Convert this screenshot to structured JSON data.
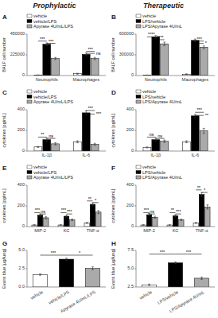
{
  "chart_data": [
    {
      "type": "bar",
      "title": "A",
      "subtitle": "Prophylactic",
      "categories": [
        "Neutrophils",
        "Macrophages"
      ],
      "series": [
        {
          "name": "vehicle",
          "color": "white",
          "values": [
            5000,
            20000
          ],
          "errors": [
            2000,
            5000
          ]
        },
        {
          "name": "vehicle/LPS",
          "color": "black",
          "values": [
            340000,
            230000
          ],
          "errors": [
            15000,
            15000
          ]
        },
        {
          "name": "Apyrase 4U/mL/LPS",
          "color": "#aaaaaa",
          "values": [
            185000,
            185000
          ],
          "errors": [
            12000,
            12000
          ]
        }
      ],
      "ylabel": "BALF cell number",
      "ylim": [
        0,
        450000
      ],
      "yticks": [
        0,
        225000,
        450000
      ],
      "legend": "top",
      "grid": false,
      "annotations": [
        {
          "text": "***",
          "y": 375000,
          "group": "Neutrophils",
          "from": "vehicle",
          "to": "vehicle/LPS"
        },
        {
          "text": "***",
          "y": 350000,
          "group": "Neutrophils",
          "from": "vehicle/LPS",
          "to": "Apyrase 4U/mL/LPS"
        },
        {
          "text": "***",
          "y": 263000,
          "group": "Macrophages",
          "from": "vehicle/LPS",
          "to": "Apyrase 4U/mL/LPS"
        },
        {
          "text": "ns",
          "y": 241000,
          "group": "Macrophages",
          "from": "vehicle/LPS",
          "to": "Apyrase 4U/mL/LPS"
        }
      ]
    },
    {
      "type": "bar",
      "title": "B",
      "subtitle": "Therapeutic",
      "categories": [
        "Neutrophils",
        "Macrophages"
      ],
      "series": [
        {
          "name": "vehicle",
          "color": "white",
          "values": [
            5000,
            20000
          ],
          "errors": [
            2000,
            5000
          ]
        },
        {
          "name": "LPS/vehicle",
          "color": "black",
          "values": [
            560000,
            510000
          ],
          "errors": [
            20000,
            20000
          ]
        },
        {
          "name": "LPS/Apyrase 4U/mL",
          "color": "#aaaaaa",
          "values": [
            460000,
            410000
          ],
          "errors": [
            25000,
            20000
          ]
        }
      ],
      "ylabel": "BALF cell number",
      "ylim": [
        0,
        600000
      ],
      "yticks": [
        0,
        300000,
        600000
      ],
      "legend": "top",
      "grid": false,
      "annotations": [
        {
          "text": "****",
          "y": 560000,
          "group": "Neutrophils",
          "from": "vehicle",
          "to": "LPS/vehicle"
        },
        {
          "text": "****",
          "y": 520000,
          "group": "Neutrophils",
          "from": "LPS/vehicle",
          "to": "LPS/Apyrase 4U/mL"
        },
        {
          "text": "***",
          "y": 500000,
          "group": "Macrophages",
          "from": "LPS/vehicle",
          "to": "LPS/Apyrase 4U/mL"
        },
        {
          "text": "*",
          "y": 465000,
          "group": "Macrophages",
          "from": "LPS/vehicle",
          "to": "LPS/Apyrase 4U/mL"
        }
      ]
    },
    {
      "type": "bar",
      "title": "C",
      "categories": [
        "IL-1β",
        "IL-6"
      ],
      "series": [
        {
          "name": "vehicle",
          "color": "white",
          "values": [
            40,
            90
          ],
          "errors": [
            5,
            10
          ]
        },
        {
          "name": "vehicle/LPS",
          "color": "black",
          "values": [
            110,
            370
          ],
          "errors": [
            15,
            20
          ]
        },
        {
          "name": "Apyrase 4U/mL/LPS",
          "color": "#aaaaaa",
          "values": [
            70,
            65
          ],
          "errors": [
            10,
            10
          ]
        }
      ],
      "ylabel": "cytokines [pg/mL]",
      "ylim": [
        0,
        400
      ],
      "yticks": [
        0,
        200,
        400
      ],
      "legend": "top",
      "grid": false,
      "annotations": [
        {
          "text": "**",
          "y": 135,
          "group": "IL-1β",
          "from": "vehicle",
          "to": "vehicle/LPS"
        },
        {
          "text": "ns",
          "y": 122,
          "group": "IL-1β",
          "from": "vehicle/LPS",
          "to": "Apyrase 4U/mL/LPS"
        },
        {
          "text": "***",
          "y": 392,
          "group": "IL-6",
          "from": "vehicle/LPS",
          "to": "Apyrase 4U/mL/LPS"
        },
        {
          "text": "***",
          "y": 358,
          "group": "IL-6",
          "from": "vehicle/LPS",
          "to": "Apyrase 4U/mL/LPS"
        }
      ]
    },
    {
      "type": "bar",
      "title": "D",
      "categories": [
        "IL-1β",
        "IL-6"
      ],
      "series": [
        {
          "name": "vehicle",
          "color": "white",
          "values": [
            35,
            90
          ],
          "errors": [
            5,
            10
          ]
        },
        {
          "name": "LPS/vehicle",
          "color": "black",
          "values": [
            110,
            340
          ],
          "errors": [
            15,
            15
          ]
        },
        {
          "name": "LPS/Apyrase 4U/mL",
          "color": "#aaaaaa",
          "values": [
            95,
            195
          ],
          "errors": [
            12,
            25
          ]
        }
      ],
      "ylabel": "cytokines [pg/mL]",
      "ylim": [
        0,
        400
      ],
      "yticks": [
        0,
        200,
        400
      ],
      "legend": "top",
      "grid": false,
      "annotations": [
        {
          "text": "ns",
          "y": 135,
          "group": "IL-1β",
          "from": "vehicle",
          "to": "LPS/vehicle"
        },
        {
          "text": "ns",
          "y": 122,
          "group": "IL-1β",
          "from": "LPS/vehicle",
          "to": "LPS/Apyrase 4U/mL"
        },
        {
          "text": "***",
          "y": 375,
          "group": "IL-6",
          "from": "LPS/vehicle",
          "to": "LPS/Apyrase 4U/mL"
        },
        {
          "text": "**",
          "y": 345,
          "group": "IL-6",
          "from": "LPS/vehicle",
          "to": "LPS/Apyrase 4U/mL"
        }
      ]
    },
    {
      "type": "bar",
      "title": "E",
      "categories": [
        "MIP-2",
        "KC",
        "TNF-α"
      ],
      "series": [
        {
          "name": "vehicle",
          "color": "white",
          "values": [
            15,
            15,
            35
          ],
          "errors": [
            3,
            3,
            5
          ]
        },
        {
          "name": "vehicle/LPS",
          "color": "black",
          "values": [
            110,
            100,
            215
          ],
          "errors": [
            12,
            10,
            15
          ]
        },
        {
          "name": "Apyrase 4U/mL/LPS",
          "color": "#aaaaaa",
          "values": [
            85,
            65,
            140
          ],
          "errors": [
            10,
            8,
            15
          ]
        }
      ],
      "ylabel": "cytokines [pg/mL]",
      "ylim": [
        0,
        400
      ],
      "yticks": [
        0,
        200,
        400
      ],
      "legend": "top",
      "grid": false,
      "annotations": [
        {
          "text": "***",
          "y": 135,
          "group": "MIP-2",
          "from": "vehicle",
          "to": "vehicle/LPS"
        },
        {
          "text": "ns",
          "y": 122,
          "group": "MIP-2",
          "from": "vehicle/LPS",
          "to": "Apyrase 4U/mL/LPS"
        },
        {
          "text": "***",
          "y": 135,
          "group": "KC",
          "from": "vehicle",
          "to": "vehicle/LPS"
        },
        {
          "text": "***",
          "y": 122,
          "group": "KC",
          "from": "vehicle/LPS",
          "to": "Apyrase 4U/mL/LPS"
        },
        {
          "text": "**",
          "y": 248,
          "group": "TNF-α",
          "from": "vehicle",
          "to": "vehicle/LPS"
        },
        {
          "text": "*",
          "y": 232,
          "group": "TNF-α",
          "from": "vehicle/LPS",
          "to": "Apyrase 4U/mL/LPS"
        }
      ]
    },
    {
      "type": "bar",
      "title": "F",
      "categories": [
        "MIP-2",
        "KC",
        "TNF-α"
      ],
      "series": [
        {
          "name": "vehicle",
          "color": "white",
          "values": [
            15,
            15,
            35
          ],
          "errors": [
            3,
            3,
            5
          ]
        },
        {
          "name": "LPS/vehicle",
          "color": "black",
          "values": [
            115,
            105,
            310
          ],
          "errors": [
            12,
            10,
            20
          ]
        },
        {
          "name": "LPS/Apyrase 4U/mL",
          "color": "#aaaaaa",
          "values": [
            90,
            65,
            190
          ],
          "errors": [
            10,
            8,
            20
          ]
        }
      ],
      "ylabel": "cytokines [pg/mL]",
      "ylim": [
        0,
        400
      ],
      "yticks": [
        0,
        200,
        400
      ],
      "legend": "top",
      "grid": false,
      "annotations": [
        {
          "text": "***",
          "y": 135,
          "group": "MIP-2",
          "from": "vehicle",
          "to": "LPS/vehicle"
        },
        {
          "text": "ns",
          "y": 122,
          "group": "MIP-2",
          "from": "LPS/vehicle",
          "to": "LPS/Apyrase 4U/mL"
        },
        {
          "text": "**",
          "y": 135,
          "group": "KC",
          "from": "vehicle",
          "to": "LPS/vehicle"
        },
        {
          "text": "***",
          "y": 122,
          "group": "KC",
          "from": "LPS/vehicle",
          "to": "LPS/Apyrase 4U/mL"
        },
        {
          "text": "**",
          "y": 355,
          "group": "TNF-α",
          "from": "vehicle",
          "to": "LPS/vehicle"
        },
        {
          "text": "*",
          "y": 330,
          "group": "TNF-α",
          "from": "LPS/vehicle",
          "to": "LPS/Apyrase 4U/mL"
        }
      ]
    },
    {
      "type": "bar",
      "title": "G",
      "categories": [
        "vehicle",
        "vehicle/LPS",
        "Apyrase 4U/mL/LPS"
      ],
      "values": [
        1.7,
        3.8,
        2.55
      ],
      "errors": [
        0.1,
        0.15,
        0.2
      ],
      "colors": [
        "white",
        "black",
        "#aaaaaa"
      ],
      "ylabel": "Evans blue [µg/lung]",
      "ylim": [
        0.0,
        5.0
      ],
      "yticks": [
        {
          "value": 0.0,
          "label": "0.0"
        },
        2.5,
        {
          "value": 5.0,
          "label": "5.0"
        }
      ],
      "grid": false,
      "annotations": [
        {
          "text": "***",
          "y": 4.35,
          "from": "vehicle",
          "to": "vehicle/LPS"
        },
        {
          "text": "*",
          "y": 4.35,
          "from": "vehicle/LPS",
          "to": "Apyrase 4U/mL/LPS"
        }
      ]
    },
    {
      "type": "bar",
      "title": "H",
      "categories": [
        "vehicle",
        "LPS/vehicle",
        "LPS/Apyrase 4U/mL"
      ],
      "values": [
        2.8,
        5.8,
        3.7
      ],
      "errors": [
        0.1,
        0.12,
        0.15
      ],
      "colors": [
        "white",
        "black",
        "#aaaaaa"
      ],
      "ylabel": "Evans blue [µg/lung]",
      "ylim": [
        2.5,
        7.5
      ],
      "yticks": [
        2.5,
        {
          "value": 5.0,
          "label": "5.0"
        },
        7.5
      ],
      "grid": false,
      "annotations": [
        {
          "text": "***",
          "y": 7.0,
          "from": "vehicle",
          "to": "LPS/vehicle"
        },
        {
          "text": "***",
          "y": 7.0,
          "from": "LPS/vehicle",
          "to": "LPS/Apyrase 4U/mL"
        }
      ]
    }
  ]
}
